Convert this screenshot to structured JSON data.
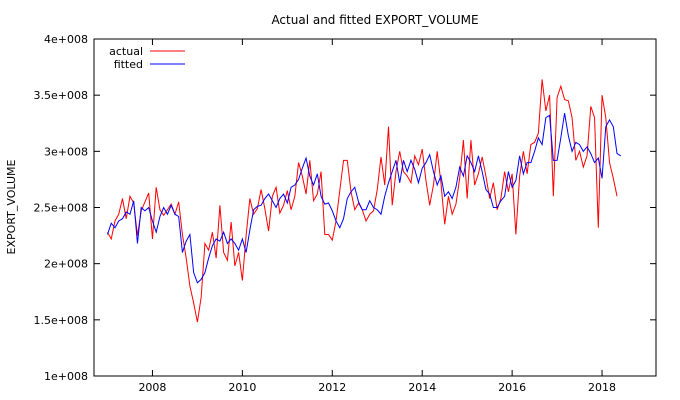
{
  "chart_data": {
    "type": "line",
    "title": "Actual and fitted EXPORT_VOLUME",
    "xlabel": "",
    "ylabel": "EXPORT_VOLUME",
    "xlim": [
      2006.7,
      2019.2
    ],
    "ylim": [
      100000000,
      400000000
    ],
    "x_ticks": [
      2008,
      2010,
      2012,
      2014,
      2016,
      2018
    ],
    "x_tick_labels": [
      "2008",
      "2010",
      "2012",
      "2014",
      "2016",
      "2018"
    ],
    "y_ticks": [
      100000000,
      150000000,
      200000000,
      250000000,
      300000000,
      350000000,
      400000000
    ],
    "y_tick_labels": [
      "1e+008",
      "1.5e+008",
      "2e+008",
      "2.5e+008",
      "3e+008",
      "3.5e+008",
      "4e+008"
    ],
    "grid": false,
    "legend_position": "top-left",
    "x_start": 2007.0,
    "x_step": 0.083333,
    "series": [
      {
        "name": "actual",
        "color": "#ff0000",
        "values": [
          228000000,
          222000000,
          238000000,
          244000000,
          258000000,
          240000000,
          260000000,
          254000000,
          225000000,
          247000000,
          255000000,
          263000000,
          222000000,
          268000000,
          248000000,
          243000000,
          248000000,
          253000000,
          244000000,
          255000000,
          226000000,
          205000000,
          180000000,
          165000000,
          148000000,
          170000000,
          218000000,
          212000000,
          228000000,
          205000000,
          252000000,
          210000000,
          203000000,
          237000000,
          198000000,
          210000000,
          185000000,
          225000000,
          258000000,
          244000000,
          249000000,
          266000000,
          249000000,
          229000000,
          260000000,
          268000000,
          245000000,
          252000000,
          265000000,
          248000000,
          260000000,
          290000000,
          278000000,
          262000000,
          292000000,
          256000000,
          262000000,
          282000000,
          226000000,
          226000000,
          221000000,
          238000000,
          265000000,
          292000000,
          292000000,
          264000000,
          248000000,
          254000000,
          248000000,
          238000000,
          244000000,
          247000000,
          266000000,
          295000000,
          270000000,
          322000000,
          252000000,
          282000000,
          300000000,
          282000000,
          278000000,
          272000000,
          296000000,
          288000000,
          302000000,
          274000000,
          252000000,
          270000000,
          300000000,
          272000000,
          235000000,
          260000000,
          244000000,
          253000000,
          276000000,
          310000000,
          258000000,
          310000000,
          270000000,
          280000000,
          295000000,
          278000000,
          258000000,
          272000000,
          248000000,
          258000000,
          282000000,
          264000000,
          280000000,
          226000000,
          278000000,
          300000000,
          280000000,
          306000000,
          308000000,
          316000000,
          364000000,
          336000000,
          350000000,
          260000000,
          348000000,
          358000000,
          346000000,
          345000000,
          330000000,
          292000000,
          300000000,
          286000000,
          296000000,
          340000000,
          330000000,
          232000000,
          350000000,
          330000000,
          290000000,
          276000000,
          260000000
        ]
      },
      {
        "name": "fitted",
        "color": "#0000ff",
        "values": [
          226000000,
          236000000,
          232000000,
          238000000,
          240000000,
          246000000,
          244000000,
          256000000,
          218000000,
          250000000,
          247000000,
          250000000,
          238000000,
          228000000,
          242000000,
          250000000,
          244000000,
          252000000,
          244000000,
          242000000,
          210000000,
          220000000,
          226000000,
          192000000,
          183000000,
          186000000,
          192000000,
          205000000,
          216000000,
          222000000,
          220000000,
          228000000,
          218000000,
          222000000,
          218000000,
          212000000,
          222000000,
          210000000,
          230000000,
          248000000,
          251000000,
          252000000,
          258000000,
          262000000,
          256000000,
          250000000,
          258000000,
          262000000,
          254000000,
          268000000,
          270000000,
          275000000,
          285000000,
          294000000,
          278000000,
          270000000,
          280000000,
          260000000,
          253000000,
          254000000,
          247000000,
          238000000,
          232000000,
          240000000,
          258000000,
          264000000,
          268000000,
          255000000,
          248000000,
          248000000,
          256000000,
          250000000,
          248000000,
          244000000,
          260000000,
          272000000,
          282000000,
          292000000,
          272000000,
          292000000,
          282000000,
          292000000,
          284000000,
          272000000,
          285000000,
          290000000,
          297000000,
          282000000,
          270000000,
          278000000,
          260000000,
          264000000,
          258000000,
          268000000,
          286000000,
          278000000,
          296000000,
          290000000,
          282000000,
          296000000,
          282000000,
          266000000,
          262000000,
          250000000,
          250000000,
          256000000,
          260000000,
          282000000,
          268000000,
          274000000,
          296000000,
          280000000,
          290000000,
          290000000,
          300000000,
          312000000,
          306000000,
          330000000,
          332000000,
          292000000,
          292000000,
          312000000,
          334000000,
          314000000,
          300000000,
          308000000,
          306000000,
          300000000,
          304000000,
          298000000,
          290000000,
          294000000,
          276000000,
          322000000,
          328000000,
          322000000,
          298000000,
          296000000
        ]
      }
    ]
  }
}
